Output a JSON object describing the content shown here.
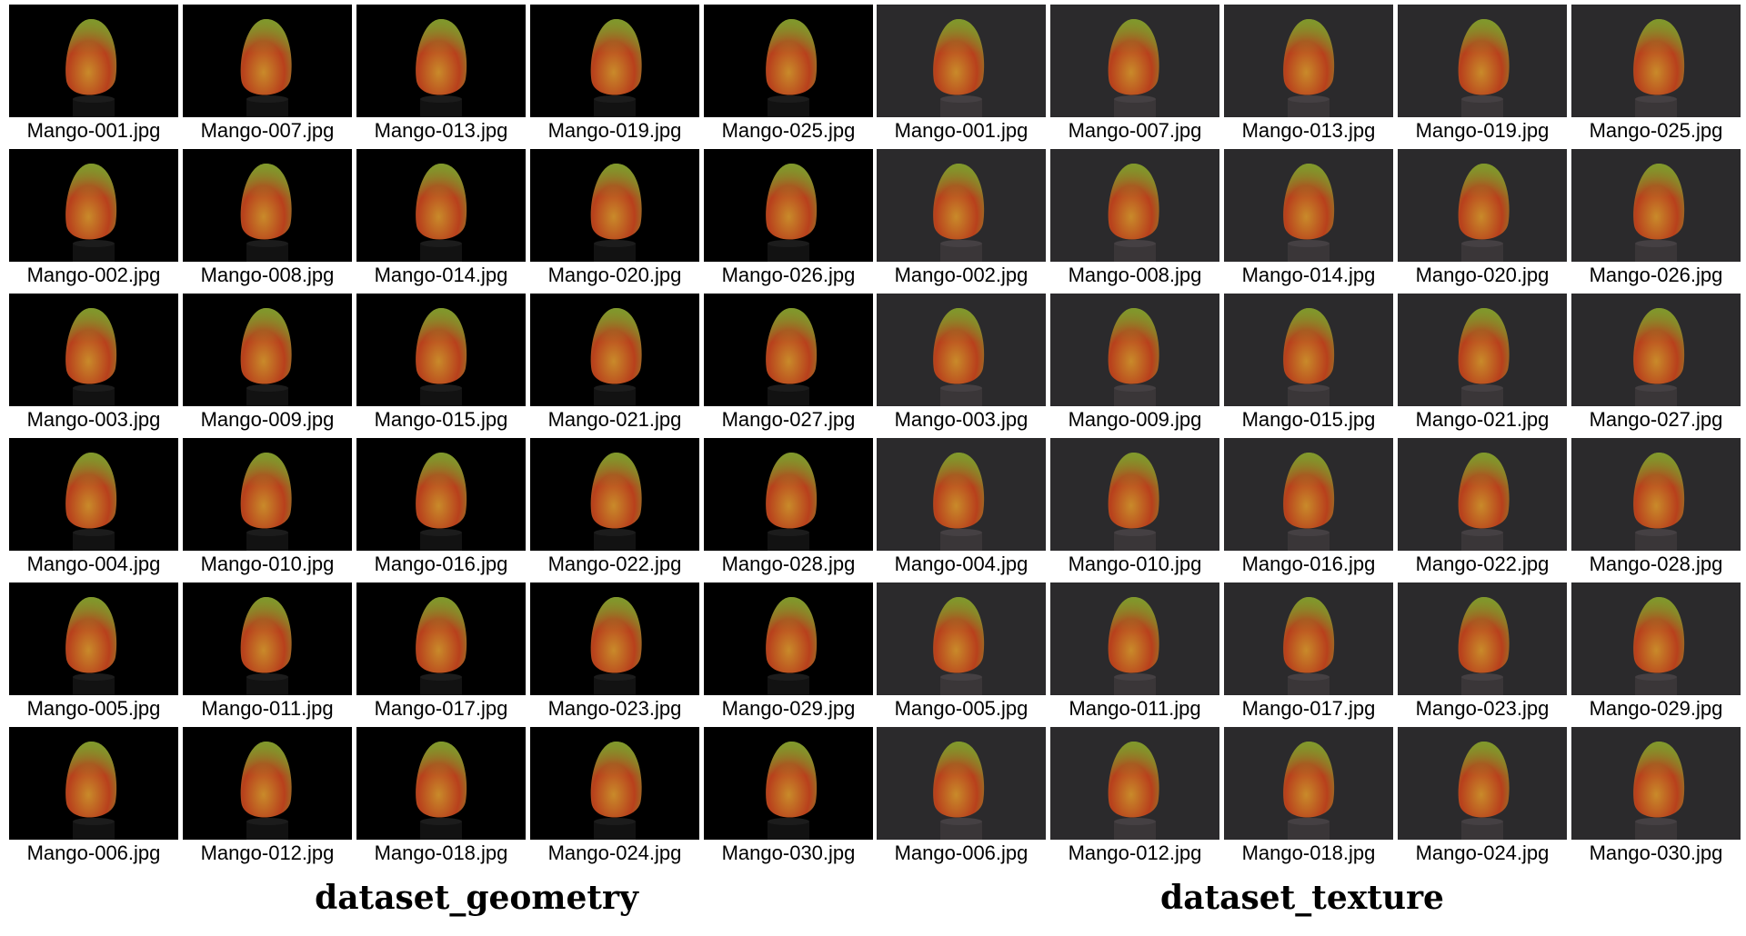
{
  "datasets": [
    {
      "key": "geometry",
      "title": "dataset_geometry",
      "background_color": "#000000",
      "columns": [
        [
          "Mango-001.jpg",
          "Mango-002.jpg",
          "Mango-003.jpg",
          "Mango-004.jpg",
          "Mango-005.jpg",
          "Mango-006.jpg"
        ],
        [
          "Mango-007.jpg",
          "Mango-008.jpg",
          "Mango-009.jpg",
          "Mango-010.jpg",
          "Mango-011.jpg",
          "Mango-012.jpg"
        ],
        [
          "Mango-013.jpg",
          "Mango-014.jpg",
          "Mango-015.jpg",
          "Mango-016.jpg",
          "Mango-017.jpg",
          "Mango-018.jpg"
        ],
        [
          "Mango-019.jpg",
          "Mango-020.jpg",
          "Mango-021.jpg",
          "Mango-022.jpg",
          "Mango-023.jpg",
          "Mango-024.jpg"
        ],
        [
          "Mango-025.jpg",
          "Mango-026.jpg",
          "Mango-027.jpg",
          "Mango-028.jpg",
          "Mango-029.jpg",
          "Mango-030.jpg"
        ]
      ]
    },
    {
      "key": "texture",
      "title": "dataset_texture",
      "background_color": "#2b2a2c",
      "columns": [
        [
          "Mango-001.jpg",
          "Mango-002.jpg",
          "Mango-003.jpg",
          "Mango-004.jpg",
          "Mango-005.jpg",
          "Mango-006.jpg"
        ],
        [
          "Mango-007.jpg",
          "Mango-008.jpg",
          "Mango-009.jpg",
          "Mango-010.jpg",
          "Mango-011.jpg",
          "Mango-012.jpg"
        ],
        [
          "Mango-013.jpg",
          "Mango-014.jpg",
          "Mango-015.jpg",
          "Mango-016.jpg",
          "Mango-017.jpg",
          "Mango-018.jpg"
        ],
        [
          "Mango-019.jpg",
          "Mango-020.jpg",
          "Mango-021.jpg",
          "Mango-022.jpg",
          "Mango-023.jpg",
          "Mango-024.jpg"
        ],
        [
          "Mango-025.jpg",
          "Mango-026.jpg",
          "Mango-027.jpg",
          "Mango-028.jpg",
          "Mango-029.jpg",
          "Mango-030.jpg"
        ]
      ]
    }
  ],
  "colors": {
    "mango_red": "#b8401c",
    "mango_orange": "#c98a2a",
    "mango_green": "#7f9a2c",
    "caption_text": "#000000"
  }
}
